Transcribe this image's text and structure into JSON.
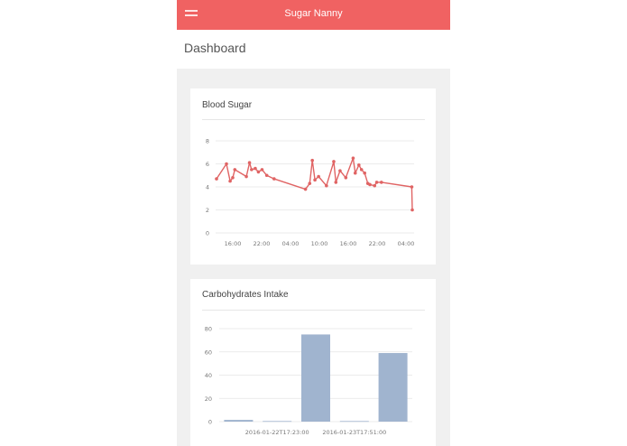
{
  "header": {
    "title": "Sugar Nanny",
    "menu_icon": "hamburger-menu-icon"
  },
  "page": {
    "title": "Dashboard"
  },
  "colors": {
    "accent": "#f06262",
    "line_series": "#e06464",
    "bar_series": "#a0b4cf"
  },
  "charts": {
    "blood_sugar": {
      "title": "Blood Sugar"
    },
    "carbs": {
      "title": "Carbohydrates Intake"
    }
  },
  "chart_data": [
    {
      "type": "line",
      "title": "Blood Sugar",
      "xlabel": "",
      "ylabel": "",
      "x_ticks": [
        "16:00",
        "22:00",
        "04:00",
        "10:00",
        "16:00",
        "22:00",
        "04:00"
      ],
      "y_ticks": [
        0,
        2,
        4,
        6,
        8
      ],
      "ylim": [
        0,
        8
      ],
      "grid": true,
      "x_unit": "hours",
      "x": [
        0.0,
        1.9,
        2.6,
        3.1,
        3.5,
        5.7,
        6.3,
        6.7,
        7.4,
        8.0,
        8.7,
        9.6,
        11.0,
        17.0,
        17.8,
        18.3,
        18.8,
        19.5,
        21.0,
        22.4,
        22.8,
        23.6,
        24.7,
        26.1,
        26.5,
        27.2,
        27.7,
        28.3,
        28.9,
        29.3,
        30.2,
        30.6,
        31.5,
        37.3,
        37.4
      ],
      "values": [
        4.7,
        6.0,
        4.5,
        4.8,
        5.5,
        4.9,
        6.1,
        5.5,
        5.6,
        5.3,
        5.5,
        5.0,
        4.7,
        3.8,
        4.3,
        6.3,
        4.6,
        4.9,
        4.1,
        6.2,
        4.4,
        5.4,
        4.8,
        6.5,
        5.2,
        5.9,
        5.5,
        5.2,
        4.3,
        4.2,
        4.1,
        4.4,
        4.4,
        4.0,
        2.0
      ],
      "series": [
        {
          "name": "",
          "color": "#e06464"
        }
      ]
    },
    {
      "type": "bar",
      "title": "Carbohydrates Intake",
      "xlabel": "",
      "ylabel": "",
      "categories": [
        "",
        "2016-01-22T17:23:00",
        "",
        "2016-01-23T17:51:00",
        ""
      ],
      "x_tick_labels": [
        "2016-01-22T17:23:00",
        "2016-01-23T17:51:00"
      ],
      "values": [
        1.5,
        0.5,
        75,
        0.5,
        59
      ],
      "y_ticks": [
        0,
        20,
        40,
        60,
        80
      ],
      "ylim": [
        0,
        80
      ],
      "grid": true,
      "series": [
        {
          "name": "",
          "color": "#a0b4cf"
        }
      ]
    }
  ]
}
